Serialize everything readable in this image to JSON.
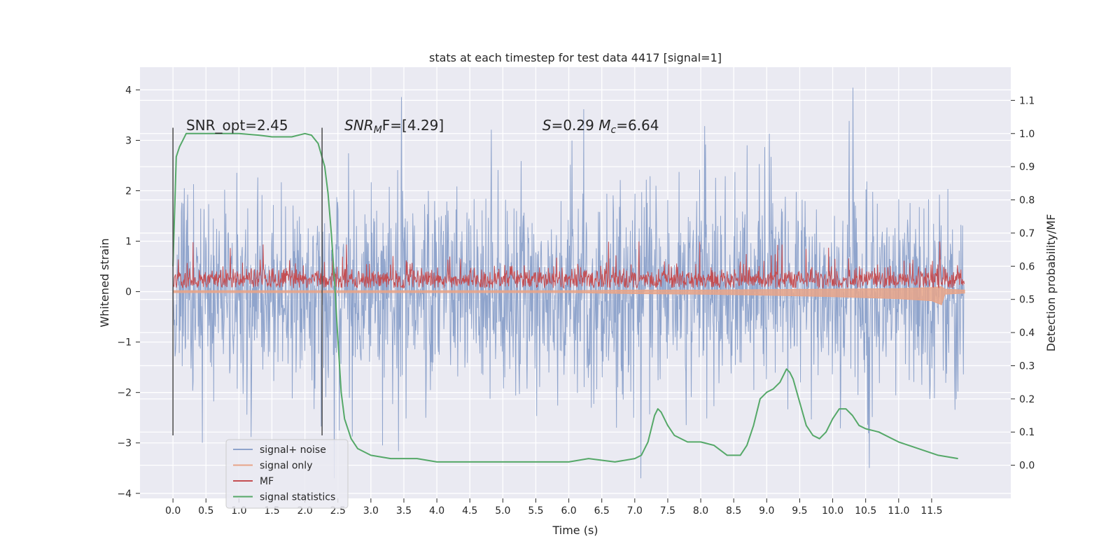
{
  "chart_data": {
    "type": "line",
    "title": "stats at each timestep for test data 4417 [signal=1]",
    "xlabel": "Time (s)",
    "ylabel": "Whitened strain",
    "y2label": "Detection probability/MF",
    "xlim": [
      -0.5,
      12.7
    ],
    "ylim": [
      -4.1,
      4.45
    ],
    "y2lim": [
      -0.1,
      1.2
    ],
    "x_ticks": [
      0.0,
      0.5,
      1.0,
      1.5,
      2.0,
      2.5,
      3.0,
      3.5,
      4.0,
      4.5,
      5.0,
      5.5,
      6.0,
      6.5,
      7.0,
      7.5,
      8.0,
      8.5,
      9.0,
      9.5,
      10.0,
      10.5,
      11.0,
      11.5
    ],
    "x_tick_labels": [
      "0.0",
      "0.5",
      "1.0",
      "1.5",
      "2.0",
      "2.5",
      "3.0",
      "3.5",
      "4.0",
      "4.5",
      "5.0",
      "5.5",
      "6.0",
      "6.5",
      "7.0",
      "7.5",
      "8.0",
      "8.5",
      "9.0",
      "9.5",
      "10.0",
      "10.5",
      "11.0",
      "11.5"
    ],
    "y_ticks": [
      -4,
      -3,
      -2,
      -1,
      0,
      1,
      2,
      3,
      4
    ],
    "y_tick_labels": [
      "−4",
      "−3",
      "−2",
      "−1",
      "0",
      "1",
      "2",
      "3",
      "4"
    ],
    "y2_ticks": [
      0.0,
      0.1,
      0.2,
      0.3,
      0.4,
      0.5,
      0.6,
      0.7,
      0.8,
      0.9,
      1.0,
      1.1
    ],
    "y2_tick_labels": [
      "0.0",
      "0.1",
      "0.2",
      "0.3",
      "0.4",
      "0.5",
      "0.6",
      "0.7",
      "0.8",
      "0.9",
      "1.0",
      "1.1"
    ],
    "grid": true,
    "legend_position": "lower-left",
    "annotations": [
      {
        "text": "SNR_opt=2.45",
        "x": 0.2,
        "y": 3.3
      },
      {
        "text": "SNR_MF=[4.29]",
        "x": 2.6,
        "y": 3.3,
        "main": "SNR",
        "sub": "M",
        "rest": "F=[4.29]"
      },
      {
        "text": "S=0.29   M_c=6.64",
        "x": 5.6,
        "y": 3.3,
        "s_label": "S",
        "s_value": "=0.29",
        "m_label": "M",
        "m_sub": "c",
        "m_value": "=6.64"
      }
    ],
    "vlines": [
      {
        "x": 0.0,
        "y_range": [
          -2.85,
          3.25
        ]
      },
      {
        "x": 2.26,
        "y_range": [
          -2.85,
          3.25
        ]
      }
    ],
    "series": [
      {
        "name": "signal+ noise",
        "color": "#8fa4cc",
        "axis": "left",
        "x_range": [
          0.0,
          12.0
        ],
        "envelope": {
          "mean": 0.0,
          "typical_upper": 2.0,
          "typical_lower": -2.0,
          "extreme_max": 4.1,
          "extreme_min": -3.7
        }
      },
      {
        "name": "signal only",
        "color": "#e8a488",
        "axis": "left",
        "x": [
          0.0,
          1.0,
          2.0,
          3.0,
          4.0,
          5.0,
          6.0,
          7.0,
          8.0,
          9.0,
          10.0,
          11.0,
          11.5,
          11.65,
          11.7,
          12.0
        ],
        "upper": [
          0.02,
          0.02,
          0.02,
          0.02,
          0.02,
          0.02,
          0.02,
          0.03,
          0.03,
          0.04,
          0.05,
          0.06,
          0.08,
          0.1,
          0.05,
          0.03
        ],
        "lower": [
          -0.02,
          -0.02,
          -0.02,
          -0.02,
          -0.02,
          -0.02,
          -0.02,
          -0.04,
          -0.05,
          -0.07,
          -0.1,
          -0.14,
          -0.18,
          -0.26,
          -0.05,
          -0.03
        ]
      },
      {
        "name": "MF",
        "color": "#c44e52",
        "axis": "left",
        "x_range": [
          0.0,
          12.0
        ],
        "envelope": {
          "mean": 0.25,
          "typical_upper": 0.6,
          "typical_lower": 0.05,
          "extreme_max": 1.0,
          "extreme_min": 0.0
        }
      },
      {
        "name": "signal statistics",
        "color": "#55a868",
        "axis": "right",
        "x": [
          0.0,
          0.05,
          0.1,
          0.15,
          0.2,
          0.3,
          0.5,
          1.0,
          1.3,
          1.5,
          1.8,
          2.0,
          2.1,
          2.2,
          2.3,
          2.35,
          2.4,
          2.45,
          2.5,
          2.55,
          2.6,
          2.7,
          2.8,
          3.0,
          3.3,
          3.5,
          3.7,
          4.0,
          4.5,
          5.0,
          5.5,
          6.0,
          6.3,
          6.7,
          7.0,
          7.1,
          7.2,
          7.3,
          7.35,
          7.4,
          7.5,
          7.6,
          7.8,
          8.0,
          8.2,
          8.4,
          8.6,
          8.7,
          8.8,
          8.9,
          9.0,
          9.1,
          9.2,
          9.3,
          9.35,
          9.4,
          9.5,
          9.6,
          9.7,
          9.8,
          9.9,
          10.0,
          10.1,
          10.2,
          10.3,
          10.4,
          10.5,
          10.7,
          11.0,
          11.3,
          11.6,
          11.9
        ],
        "y": [
          0.6,
          0.93,
          0.96,
          0.98,
          1.0,
          1.0,
          1.0,
          1.0,
          0.995,
          0.99,
          0.99,
          1.0,
          0.995,
          0.97,
          0.9,
          0.82,
          0.7,
          0.55,
          0.38,
          0.22,
          0.14,
          0.08,
          0.05,
          0.03,
          0.02,
          0.02,
          0.02,
          0.01,
          0.01,
          0.01,
          0.01,
          0.01,
          0.02,
          0.01,
          0.02,
          0.03,
          0.07,
          0.15,
          0.17,
          0.16,
          0.12,
          0.09,
          0.07,
          0.07,
          0.06,
          0.03,
          0.03,
          0.06,
          0.12,
          0.2,
          0.22,
          0.23,
          0.25,
          0.29,
          0.28,
          0.26,
          0.19,
          0.12,
          0.09,
          0.08,
          0.1,
          0.14,
          0.17,
          0.17,
          0.15,
          0.12,
          0.11,
          0.1,
          0.07,
          0.05,
          0.03,
          0.02
        ]
      }
    ]
  }
}
